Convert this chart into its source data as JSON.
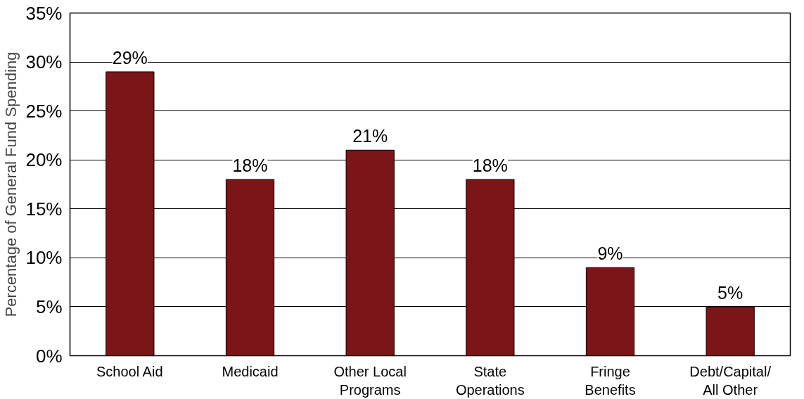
{
  "chart_data": {
    "type": "bar",
    "ylabel": "Percentage of General Fund Spending",
    "categories": [
      "School Aid",
      "Medicaid",
      "Other Local Programs",
      "State Operations",
      "Fringe Benefits",
      "Debt/Capital/ All Other"
    ],
    "values": [
      29,
      18,
      21,
      18,
      9,
      5
    ],
    "value_labels": [
      "29%",
      "18%",
      "21%",
      "18%",
      "9%",
      "5%"
    ],
    "color": "#7b1518",
    "ylim": [
      0,
      35
    ],
    "yticks": [
      {
        "value": 0,
        "label": "0%"
      },
      {
        "value": 5,
        "label": "5%"
      },
      {
        "value": 10,
        "label": "10%"
      },
      {
        "value": 15,
        "label": "15%"
      },
      {
        "value": 20,
        "label": "20%"
      },
      {
        "value": 25,
        "label": "25%"
      },
      {
        "value": 30,
        "label": "30%"
      },
      {
        "value": 35,
        "label": "35%"
      }
    ],
    "grid": "y"
  }
}
